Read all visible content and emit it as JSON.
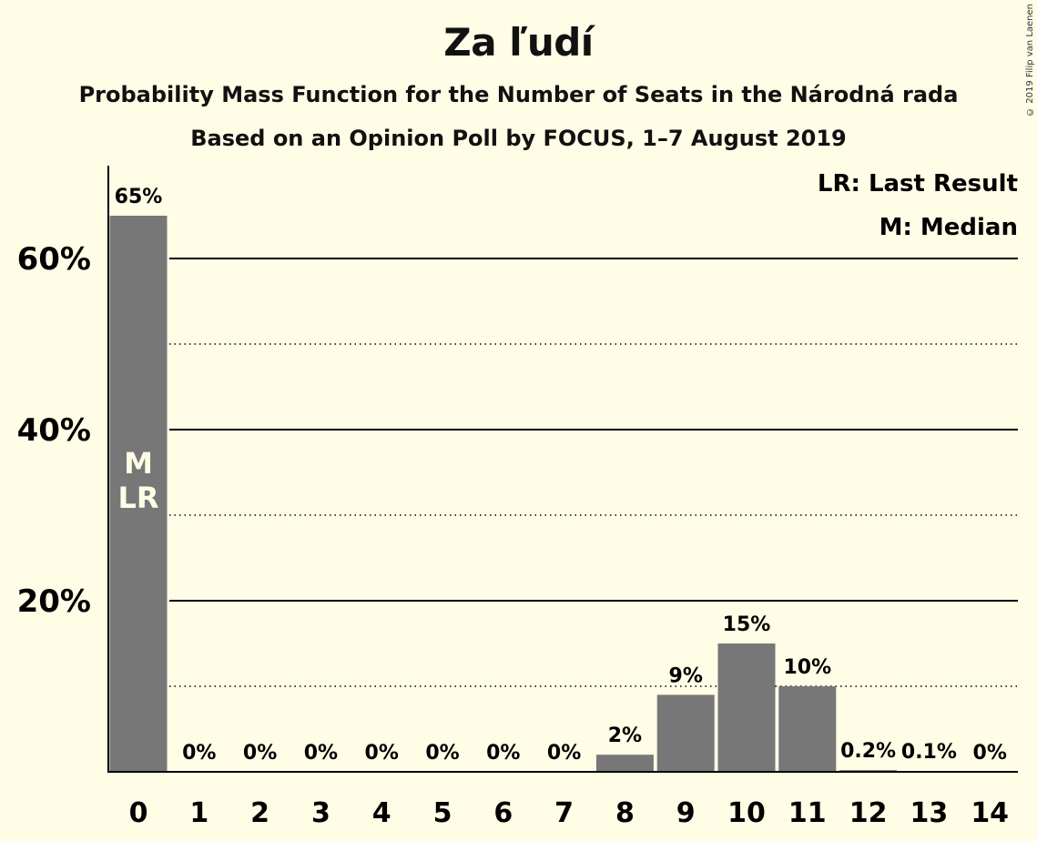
{
  "chart_data": {
    "type": "bar",
    "title": "Za ľudí",
    "subtitle": "Probability Mass Function for the Number of Seats in the Národná rada",
    "subtitle2": "Based on an Opinion Poll by FOCUS, 1–7 August 2019",
    "copyright": "© 2019 Filip van Laenen",
    "categories": [
      "0",
      "1",
      "2",
      "3",
      "4",
      "5",
      "6",
      "7",
      "8",
      "9",
      "10",
      "11",
      "12",
      "13",
      "14"
    ],
    "values": [
      65,
      0,
      0,
      0,
      0,
      0,
      0,
      0,
      2,
      9,
      15,
      10,
      0.2,
      0.1,
      0
    ],
    "data_labels": [
      "65%",
      "0%",
      "0%",
      "0%",
      "0%",
      "0%",
      "0%",
      "0%",
      "2%",
      "9%",
      "15%",
      "10%",
      "0.2%",
      "0.1%",
      "0%"
    ],
    "ylim": [
      0,
      70
    ],
    "yticks": [
      20,
      40,
      60
    ],
    "ytick_labels": [
      "20%",
      "40%",
      "60%"
    ],
    "minor_gridlines": [
      10,
      30,
      50
    ],
    "xlabel": "",
    "ylabel": "",
    "bar_color": "#777777",
    "background": "#fffde6",
    "legend_position": "top-right",
    "legend": [
      "LR: Last Result",
      "M: Median"
    ],
    "bar_annotations": [
      {
        "category": "0",
        "lines": [
          "M",
          "LR"
        ]
      }
    ]
  }
}
